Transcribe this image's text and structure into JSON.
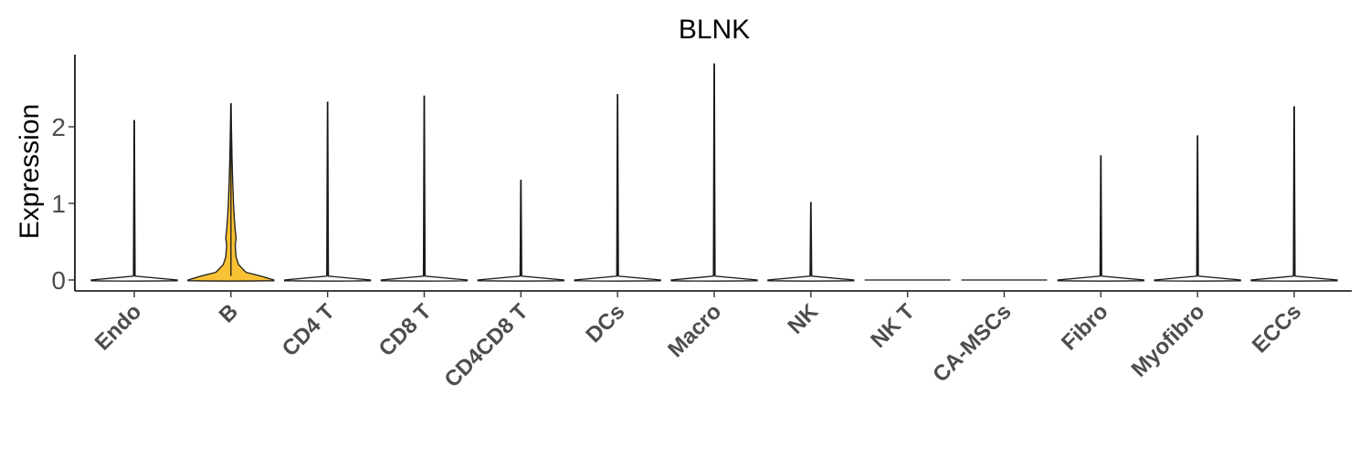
{
  "chart_data": {
    "type": "violin",
    "title": "BLNK",
    "xlabel": "",
    "ylabel": "Expression",
    "ylim": [
      -0.15,
      2.95
    ],
    "yticks": [
      0,
      1,
      2
    ],
    "grid": false,
    "legend": "none",
    "highlight_color": "#F9C134",
    "default_color": "#ffffff",
    "categories": [
      "Endo",
      "B",
      "CD4 T",
      "CD8 T",
      "CD4CD8 T",
      "DCs",
      "Macro",
      "NK",
      "NK T",
      "CA-MSCs",
      "Fibro",
      "Myofibro",
      "ECCs"
    ],
    "series": [
      {
        "category": "Endo",
        "max": 2.08,
        "profile": [
          [
            0,
            1.0
          ],
          [
            0.05,
            0.02
          ],
          [
            2.08,
            0.005
          ]
        ]
      },
      {
        "category": "B",
        "max": 2.3,
        "profile": [
          [
            0,
            1.0
          ],
          [
            0.05,
            0.7
          ],
          [
            0.1,
            0.35
          ],
          [
            0.2,
            0.18
          ],
          [
            0.3,
            0.12
          ],
          [
            0.45,
            0.1
          ],
          [
            0.55,
            0.12
          ],
          [
            0.65,
            0.1
          ],
          [
            0.8,
            0.08
          ],
          [
            1.0,
            0.06
          ],
          [
            1.3,
            0.04
          ],
          [
            1.6,
            0.025
          ],
          [
            2.0,
            0.012
          ],
          [
            2.3,
            0.005
          ]
        ]
      },
      {
        "category": "CD4 T",
        "max": 2.32,
        "profile": [
          [
            0,
            1.0
          ],
          [
            0.05,
            0.02
          ],
          [
            2.32,
            0.005
          ]
        ]
      },
      {
        "category": "CD8 T",
        "max": 2.4,
        "profile": [
          [
            0,
            1.0
          ],
          [
            0.05,
            0.02
          ],
          [
            2.4,
            0.005
          ]
        ]
      },
      {
        "category": "CD4CD8 T",
        "max": 1.3,
        "profile": [
          [
            0,
            1.0
          ],
          [
            0.05,
            0.02
          ],
          [
            1.3,
            0.005
          ]
        ]
      },
      {
        "category": "DCs",
        "max": 2.42,
        "profile": [
          [
            0,
            1.0
          ],
          [
            0.05,
            0.02
          ],
          [
            2.42,
            0.005
          ]
        ]
      },
      {
        "category": "Macro",
        "max": 2.82,
        "profile": [
          [
            0,
            1.0
          ],
          [
            0.05,
            0.02
          ],
          [
            2.82,
            0.005
          ]
        ]
      },
      {
        "category": "NK",
        "max": 1.01,
        "profile": [
          [
            0,
            1.0
          ],
          [
            0.05,
            0.02
          ],
          [
            1.01,
            0.005
          ]
        ]
      },
      {
        "category": "NK T",
        "max": 0,
        "profile": []
      },
      {
        "category": "CA-MSCs",
        "max": 0,
        "profile": []
      },
      {
        "category": "Fibro",
        "max": 1.62,
        "profile": [
          [
            0,
            1.0
          ],
          [
            0.05,
            0.02
          ],
          [
            1.62,
            0.005
          ]
        ]
      },
      {
        "category": "Myofibro",
        "max": 1.88,
        "profile": [
          [
            0,
            1.0
          ],
          [
            0.05,
            0.02
          ],
          [
            1.88,
            0.005
          ]
        ]
      },
      {
        "category": "ECCs",
        "max": 2.26,
        "profile": [
          [
            0,
            1.0
          ],
          [
            0.05,
            0.02
          ],
          [
            2.26,
            0.005
          ]
        ]
      }
    ]
  }
}
